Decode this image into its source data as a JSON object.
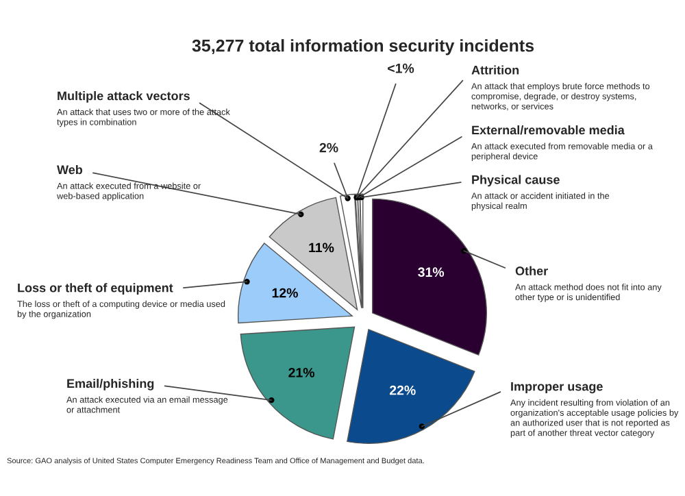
{
  "chart_data": {
    "type": "pie",
    "title": "35,277 total information security incidents",
    "categories": [
      "Other",
      "Improper usage",
      "Email/phishing",
      "Loss or theft of equipment",
      "Web",
      "Multiple attack vectors",
      "Attrition",
      "External/removable media",
      "Physical cause"
    ],
    "values": [
      31,
      22,
      21,
      12,
      11,
      2,
      0.3,
      0.3,
      0.4
    ],
    "value_labels": [
      "31%",
      "22%",
      "21%",
      "12%",
      "11%",
      "2%",
      "<1%",
      null,
      null
    ],
    "colors": [
      "#2a0031",
      "#0b4a8c",
      "#3b968c",
      "#9ccdfa",
      "#c9c9c9",
      "#ffffff",
      "#ffffff",
      "#ffffff",
      "#ffffff"
    ],
    "annotations": [
      "An attack method does not fit into any other type or is unidentified",
      "Any incident resulting from violation of an organization's acceptable usage policies by an authorized user that is not reported as part of another threat vector category",
      "An attack executed via an email message or attachment",
      "The loss or theft of a computing device or media used by the organization",
      "An attack executed from a website or web-based application",
      "An attack that uses two or more of the attack types in combination",
      "An attack that employs brute force methods to compromise, degrade, or destroy systems, networks, or services",
      "An attack executed from removable media or a peripheral device",
      "An attack or accident initiated in the physical realm",
      "Source: GAO analysis of United States Computer Emergency Readiness Team and Office of Management and Budget data."
    ]
  }
}
